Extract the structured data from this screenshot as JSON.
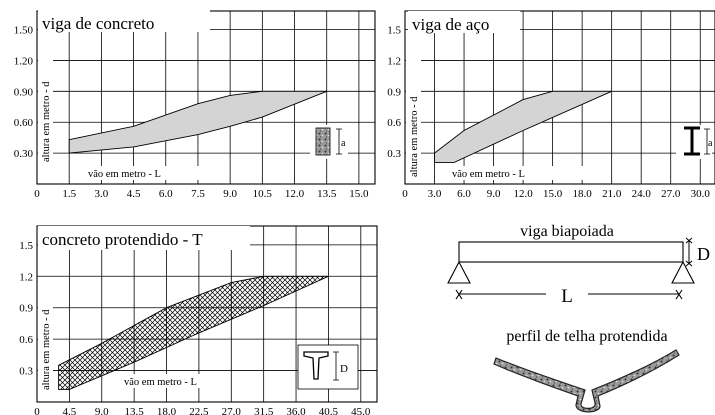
{
  "chart_data": [
    {
      "type": "area",
      "title": "viga de concreto",
      "xlabel": "vão em metro - L",
      "ylabel": "altura em metro - d",
      "x_ticks": [
        "0",
        "1.5",
        "3.0",
        "4.5",
        "6.0",
        "7.5",
        "9.0",
        "10.5",
        "12.0",
        "13.5",
        "15.0"
      ],
      "y_ticks": [
        "0.30",
        "0.60",
        "0.90",
        "1.20",
        "1.50"
      ],
      "xlim": [
        0,
        15.75
      ],
      "ylim": [
        0,
        1.68
      ],
      "grid": true,
      "upper": {
        "x": [
          1.5,
          4.5,
          7.5,
          9.0,
          10.5,
          13.5
        ],
        "y": [
          0.43,
          0.56,
          0.78,
          0.86,
          0.9,
          0.9
        ]
      },
      "lower": {
        "x": [
          1.5,
          4.5,
          7.5,
          9.0,
          10.5,
          13.5
        ],
        "y": [
          0.3,
          0.36,
          0.48,
          0.56,
          0.65,
          0.9
        ]
      },
      "fill": "#d4d4d4",
      "hatched": false,
      "inset": {
        "type": "rectangular section",
        "label": "a"
      }
    },
    {
      "type": "area",
      "title": "viga de aço",
      "xlabel": "vão em metro - L",
      "ylabel": "altura em metro - d",
      "x_ticks": [
        "0",
        "3.0",
        "6.0",
        "9.0",
        "12.0",
        "15.0",
        "18.0",
        "21.0",
        "24.0",
        "27.0",
        "30.0"
      ],
      "y_ticks": [
        "0.3",
        "0.6",
        "0.9",
        "1.2",
        "1.5"
      ],
      "xlim": [
        0,
        31.5
      ],
      "ylim": [
        0,
        1.68
      ],
      "grid": true,
      "upper": {
        "x": [
          3.0,
          6.0,
          12.0,
          15.0,
          21.0
        ],
        "y": [
          0.3,
          0.52,
          0.82,
          0.9,
          0.9
        ]
      },
      "lower": {
        "x": [
          3.0,
          5.0,
          12.0,
          21.0
        ],
        "y": [
          0.21,
          0.21,
          0.52,
          0.9
        ]
      },
      "fill": "#d4d4d4",
      "hatched": false,
      "inset": {
        "type": "I section",
        "label": "a"
      }
    },
    {
      "type": "area",
      "title": "concreto protendido - T",
      "xlabel": "vão em metro - L",
      "ylabel": "altura em metro - d",
      "x_ticks": [
        "0",
        "4.5",
        "9.0",
        "13.5",
        "18.0",
        "22.5",
        "27.0",
        "31.5",
        "36.0",
        "40.5",
        "45.0"
      ],
      "y_ticks": [
        "0.3",
        "0.6",
        "0.9",
        "1.2",
        "1.5"
      ],
      "xlim": [
        0,
        47.25
      ],
      "ylim": [
        0,
        1.68
      ],
      "grid": true,
      "upper": {
        "x": [
          3.0,
          9.0,
          18.0,
          27.0,
          31.5,
          40.5
        ],
        "y": [
          0.35,
          0.56,
          0.9,
          1.14,
          1.2,
          1.2
        ]
      },
      "lower": {
        "x": [
          3.0,
          4.5,
          13.5,
          22.5,
          31.5,
          40.5
        ],
        "y": [
          0.12,
          0.12,
          0.38,
          0.66,
          0.92,
          1.2
        ]
      },
      "fill": "#ffffff",
      "hatched": true,
      "inset": {
        "type": "T section",
        "label": "D"
      }
    }
  ],
  "beam_diagram": {
    "title": "viga biapoiada",
    "height_label": "D",
    "span_label": "L"
  },
  "tile_profile": {
    "title": "perfil de telha protendida"
  }
}
